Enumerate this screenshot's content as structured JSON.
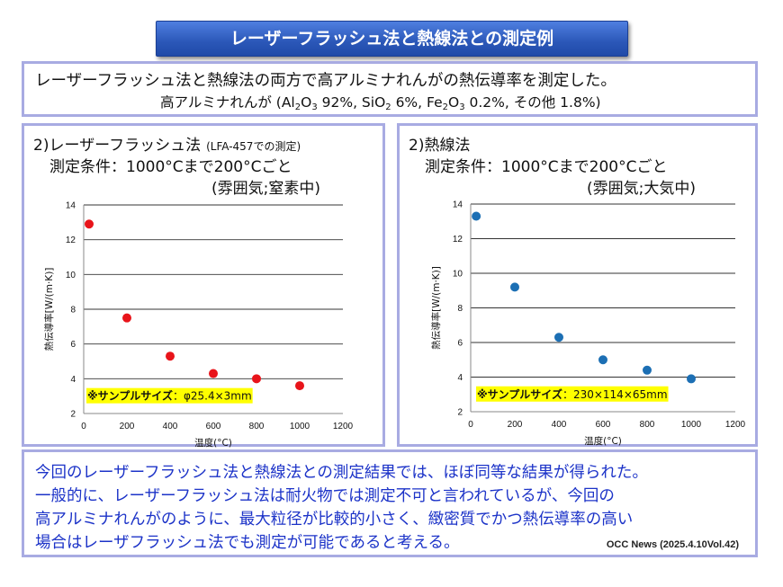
{
  "title": "レーザーフラッシュ法と熱線法との測定例",
  "intro": {
    "line1": "レーザーフラッシュ法と熱線法の両方で高アルミナれんがの熱伝導率を測定した。",
    "composition_prefix": "高アルミナれんが (Al",
    "composition_al_sub1": "2",
    "composition_o": "O",
    "composition_al_sub2": "3",
    "composition_si": " 92%, SiO",
    "composition_si_sub": "2",
    "composition_fe": " 6%, Fe",
    "composition_fe_sub1": "2",
    "composition_fe_o": "O",
    "composition_fe_sub2": "3",
    "composition_suffix": " 0.2%, その他 1.8%)"
  },
  "left_panel": {
    "title": "2)レーザーフラッシュ法",
    "title_note": "(LFA-457での測定)",
    "condition1": "測定条件：1000°Cまで200°Cごと",
    "condition2": "(雰囲気;窒素中)"
  },
  "right_panel": {
    "title": "2)熱線法",
    "condition1": "測定条件：1000°Cまで200°Cごと",
    "condition2": "(雰囲気;大気中)"
  },
  "chart_data": [
    {
      "type": "scatter",
      "title": "",
      "xlabel": "温度(°C)",
      "ylabel": "熱伝導率[W/(m·K)]",
      "xlim": [
        0,
        1200
      ],
      "ylim": [
        2,
        14
      ],
      "xticks": [
        "0",
        "200",
        "400",
        "600",
        "800",
        "1000",
        "1200"
      ],
      "yticks": [
        "2",
        "4",
        "6",
        "8",
        "10",
        "12",
        "14"
      ],
      "grid": "horizontal",
      "color": "#e8141a",
      "series": [
        {
          "x": [
            25,
            200,
            400,
            600,
            800,
            1000
          ],
          "y": [
            12.9,
            7.5,
            5.3,
            4.3,
            4.0,
            3.6
          ]
        }
      ],
      "annotation_lead": "※サンプルサイズ",
      "annotation_value": "：φ25.4×3mm",
      "annotation_bg": "#ffff00"
    },
    {
      "type": "scatter",
      "title": "",
      "xlabel": "温度(°C)",
      "ylabel": "熱伝導率[W/(m·K)]",
      "xlim": [
        0,
        1200
      ],
      "ylim": [
        2,
        14
      ],
      "xticks": [
        "0",
        "200",
        "400",
        "600",
        "800",
        "1000",
        "1200"
      ],
      "yticks": [
        "2",
        "4",
        "6",
        "8",
        "10",
        "12",
        "14"
      ],
      "grid": "horizontal",
      "color": "#1c6fb4",
      "series": [
        {
          "x": [
            25,
            200,
            400,
            600,
            800,
            1000
          ],
          "y": [
            13.3,
            9.2,
            6.3,
            5.0,
            4.4,
            3.9
          ]
        }
      ],
      "annotation_lead": "※サンプルサイズ",
      "annotation_value": "：230×114×65mm",
      "annotation_bg": "#ffff00"
    }
  ],
  "conclusion": {
    "line1": "今回のレーザーフラッシュ法と熱線法との測定結果では、ほぼ同等な結果が得られた。",
    "line2": "一般的に、レーザーフラッシュ法は耐火物では測定不可と言われているが、今回の",
    "line3": "高アルミナれんがのように、最大粒径が比較的小さく、緻密質でかつ熱伝導率の高い",
    "line4": "場合はレーザフラッシュ法でも測定が可能であると考える。",
    "source": "OCC News (2025.4.10Vol.42)"
  }
}
